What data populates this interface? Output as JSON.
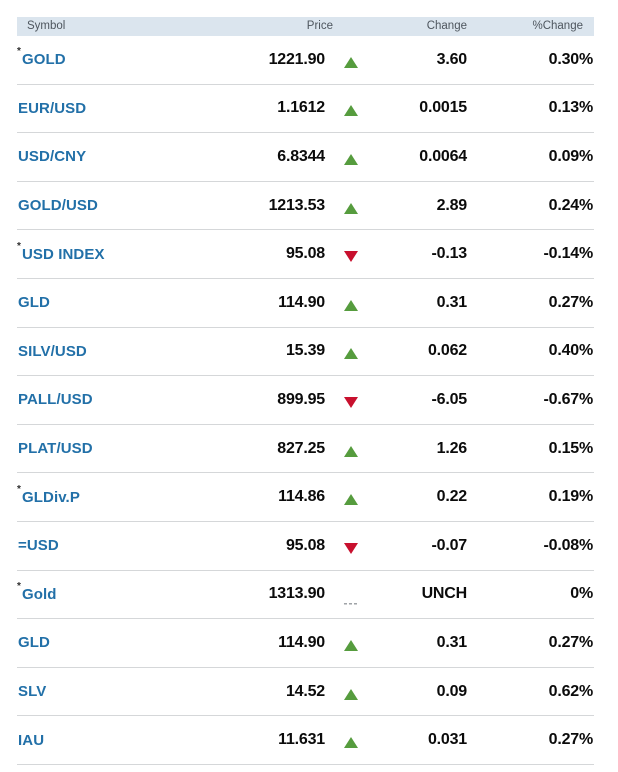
{
  "colors": {
    "symbol_blue": "#2270a8",
    "header_bg": "#dbe5ee",
    "header_text": "#4e565e",
    "divider": "#d5d7d9",
    "value_text": "#0b0b0b",
    "up_green": "#569c3e",
    "down_red": "#c8102e",
    "unch_gray": "#9b9fa3",
    "prefix_dark": "#2e2e2e"
  },
  "table": {
    "headers": {
      "symbol": "Symbol",
      "price": "Price",
      "change": "Change",
      "pct_change": "%Change"
    },
    "unch_glyph": "---",
    "rows": [
      {
        "prefix": "*",
        "symbol": "GOLD",
        "price": "1221.90",
        "direction": "up",
        "change": "3.60",
        "pct_change": "0.30%"
      },
      {
        "prefix": "",
        "symbol": "EUR/USD",
        "price": "1.1612",
        "direction": "up",
        "change": "0.0015",
        "pct_change": "0.13%"
      },
      {
        "prefix": "",
        "symbol": "USD/CNY",
        "price": "6.8344",
        "direction": "up",
        "change": "0.0064",
        "pct_change": "0.09%"
      },
      {
        "prefix": "",
        "symbol": "GOLD/USD",
        "price": "1213.53",
        "direction": "up",
        "change": "2.89",
        "pct_change": "0.24%"
      },
      {
        "prefix": "*",
        "symbol": "USD INDEX",
        "price": "95.08",
        "direction": "down",
        "change": "-0.13",
        "pct_change": "-0.14%"
      },
      {
        "prefix": "",
        "symbol": "GLD",
        "price": "114.90",
        "direction": "up",
        "change": "0.31",
        "pct_change": "0.27%"
      },
      {
        "prefix": "",
        "symbol": "SILV/USD",
        "price": "15.39",
        "direction": "up",
        "change": "0.062",
        "pct_change": "0.40%"
      },
      {
        "prefix": "",
        "symbol": "PALL/USD",
        "price": "899.95",
        "direction": "down",
        "change": "-6.05",
        "pct_change": "-0.67%"
      },
      {
        "prefix": "",
        "symbol": "PLAT/USD",
        "price": "827.25",
        "direction": "up",
        "change": "1.26",
        "pct_change": "0.15%"
      },
      {
        "prefix": "*",
        "symbol": "GLDiv.P",
        "price": "114.86",
        "direction": "up",
        "change": "0.22",
        "pct_change": "0.19%"
      },
      {
        "prefix": "",
        "symbol": "=USD",
        "price": "95.08",
        "direction": "down",
        "change": "-0.07",
        "pct_change": "-0.08%"
      },
      {
        "prefix": "*",
        "symbol": "Gold",
        "price": "1313.90",
        "direction": "unch",
        "change": "UNCH",
        "pct_change": "0%"
      },
      {
        "prefix": "",
        "symbol": "GLD",
        "price": "114.90",
        "direction": "up",
        "change": "0.31",
        "pct_change": "0.27%"
      },
      {
        "prefix": "",
        "symbol": "SLV",
        "price": "14.52",
        "direction": "up",
        "change": "0.09",
        "pct_change": "0.62%"
      },
      {
        "prefix": "",
        "symbol": "IAU",
        "price": "11.631",
        "direction": "up",
        "change": "0.031",
        "pct_change": "0.27%"
      }
    ]
  }
}
